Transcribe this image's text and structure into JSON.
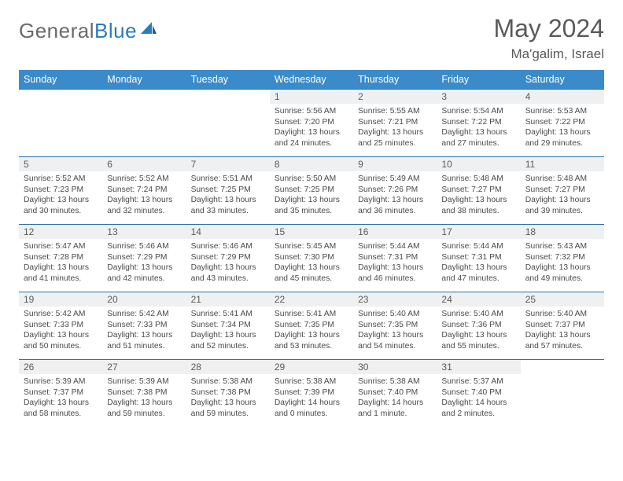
{
  "brand": {
    "part1": "General",
    "part2": "Blue"
  },
  "title": "May 2024",
  "location": "Ma'galim, Israel",
  "colors": {
    "header_bg": "#3b8bca",
    "header_text": "#ffffff",
    "row_border": "#2f6fa3",
    "daynum_bg": "#eef0f2",
    "text": "#4a4a4a",
    "logo_gray": "#6a6a6a",
    "logo_blue": "#2b7bbf"
  },
  "daysOfWeek": [
    "Sunday",
    "Monday",
    "Tuesday",
    "Wednesday",
    "Thursday",
    "Friday",
    "Saturday"
  ],
  "weeks": [
    [
      null,
      null,
      null,
      {
        "n": "1",
        "sr": "5:56 AM",
        "ss": "7:20 PM",
        "dl": "13 hours and 24 minutes."
      },
      {
        "n": "2",
        "sr": "5:55 AM",
        "ss": "7:21 PM",
        "dl": "13 hours and 25 minutes."
      },
      {
        "n": "3",
        "sr": "5:54 AM",
        "ss": "7:22 PM",
        "dl": "13 hours and 27 minutes."
      },
      {
        "n": "4",
        "sr": "5:53 AM",
        "ss": "7:22 PM",
        "dl": "13 hours and 29 minutes."
      }
    ],
    [
      {
        "n": "5",
        "sr": "5:52 AM",
        "ss": "7:23 PM",
        "dl": "13 hours and 30 minutes."
      },
      {
        "n": "6",
        "sr": "5:52 AM",
        "ss": "7:24 PM",
        "dl": "13 hours and 32 minutes."
      },
      {
        "n": "7",
        "sr": "5:51 AM",
        "ss": "7:25 PM",
        "dl": "13 hours and 33 minutes."
      },
      {
        "n": "8",
        "sr": "5:50 AM",
        "ss": "7:25 PM",
        "dl": "13 hours and 35 minutes."
      },
      {
        "n": "9",
        "sr": "5:49 AM",
        "ss": "7:26 PM",
        "dl": "13 hours and 36 minutes."
      },
      {
        "n": "10",
        "sr": "5:48 AM",
        "ss": "7:27 PM",
        "dl": "13 hours and 38 minutes."
      },
      {
        "n": "11",
        "sr": "5:48 AM",
        "ss": "7:27 PM",
        "dl": "13 hours and 39 minutes."
      }
    ],
    [
      {
        "n": "12",
        "sr": "5:47 AM",
        "ss": "7:28 PM",
        "dl": "13 hours and 41 minutes."
      },
      {
        "n": "13",
        "sr": "5:46 AM",
        "ss": "7:29 PM",
        "dl": "13 hours and 42 minutes."
      },
      {
        "n": "14",
        "sr": "5:46 AM",
        "ss": "7:29 PM",
        "dl": "13 hours and 43 minutes."
      },
      {
        "n": "15",
        "sr": "5:45 AM",
        "ss": "7:30 PM",
        "dl": "13 hours and 45 minutes."
      },
      {
        "n": "16",
        "sr": "5:44 AM",
        "ss": "7:31 PM",
        "dl": "13 hours and 46 minutes."
      },
      {
        "n": "17",
        "sr": "5:44 AM",
        "ss": "7:31 PM",
        "dl": "13 hours and 47 minutes."
      },
      {
        "n": "18",
        "sr": "5:43 AM",
        "ss": "7:32 PM",
        "dl": "13 hours and 49 minutes."
      }
    ],
    [
      {
        "n": "19",
        "sr": "5:42 AM",
        "ss": "7:33 PM",
        "dl": "13 hours and 50 minutes."
      },
      {
        "n": "20",
        "sr": "5:42 AM",
        "ss": "7:33 PM",
        "dl": "13 hours and 51 minutes."
      },
      {
        "n": "21",
        "sr": "5:41 AM",
        "ss": "7:34 PM",
        "dl": "13 hours and 52 minutes."
      },
      {
        "n": "22",
        "sr": "5:41 AM",
        "ss": "7:35 PM",
        "dl": "13 hours and 53 minutes."
      },
      {
        "n": "23",
        "sr": "5:40 AM",
        "ss": "7:35 PM",
        "dl": "13 hours and 54 minutes."
      },
      {
        "n": "24",
        "sr": "5:40 AM",
        "ss": "7:36 PM",
        "dl": "13 hours and 55 minutes."
      },
      {
        "n": "25",
        "sr": "5:40 AM",
        "ss": "7:37 PM",
        "dl": "13 hours and 57 minutes."
      }
    ],
    [
      {
        "n": "26",
        "sr": "5:39 AM",
        "ss": "7:37 PM",
        "dl": "13 hours and 58 minutes."
      },
      {
        "n": "27",
        "sr": "5:39 AM",
        "ss": "7:38 PM",
        "dl": "13 hours and 59 minutes."
      },
      {
        "n": "28",
        "sr": "5:38 AM",
        "ss": "7:38 PM",
        "dl": "13 hours and 59 minutes."
      },
      {
        "n": "29",
        "sr": "5:38 AM",
        "ss": "7:39 PM",
        "dl": "14 hours and 0 minutes."
      },
      {
        "n": "30",
        "sr": "5:38 AM",
        "ss": "7:40 PM",
        "dl": "14 hours and 1 minute."
      },
      {
        "n": "31",
        "sr": "5:37 AM",
        "ss": "7:40 PM",
        "dl": "14 hours and 2 minutes."
      },
      null
    ]
  ],
  "labels": {
    "sunrise": "Sunrise: ",
    "sunset": "Sunset: ",
    "daylight": "Daylight: "
  }
}
